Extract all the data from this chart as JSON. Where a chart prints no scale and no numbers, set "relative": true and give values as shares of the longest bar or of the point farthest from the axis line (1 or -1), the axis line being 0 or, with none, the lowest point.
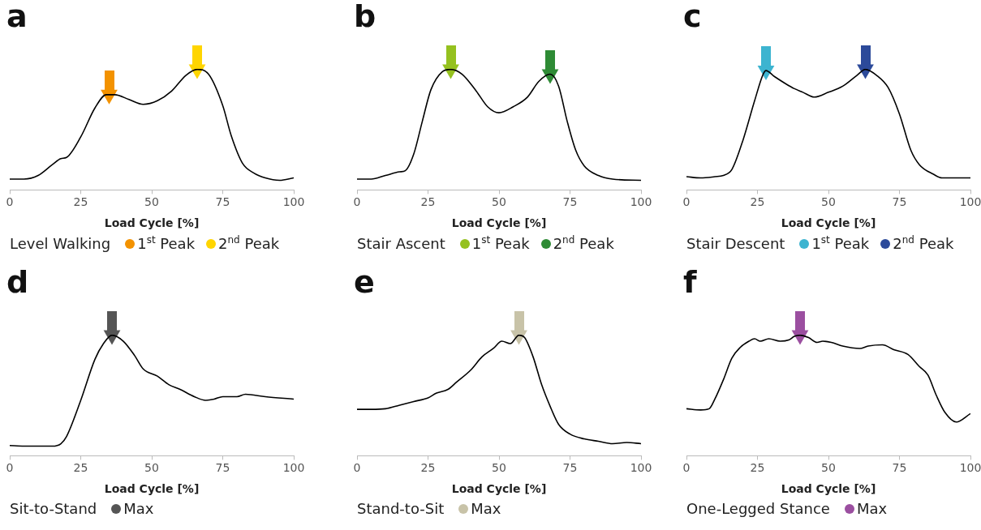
{
  "chart_data": [
    {
      "type": "line",
      "title": "a",
      "subtitle": "Level Walking",
      "xlabel": "Load Cycle [%]",
      "xlim": [
        0,
        100
      ],
      "xticks": [
        0,
        25,
        50,
        75,
        100
      ],
      "relative": true,
      "tick_labels": "x",
      "grid": false,
      "legend": "bottom",
      "series": [
        {
          "color": "#000000",
          "x": [
            0,
            5,
            10,
            15,
            18,
            20,
            25,
            30,
            34,
            37,
            42,
            47,
            52,
            57,
            62,
            66,
            70,
            75,
            78,
            82,
            86,
            90,
            95,
            100
          ],
          "values": [
            0.09,
            0.09,
            0.12,
            0.21,
            0.26,
            0.27,
            0.44,
            0.68,
            0.79,
            0.79,
            0.75,
            0.71,
            0.74,
            0.82,
            0.95,
            1.0,
            0.96,
            0.7,
            0.45,
            0.22,
            0.14,
            0.1,
            0.08,
            0.1
          ]
        },
        {
          "name": "1$^{st}$ Peak",
          "type": "scatter",
          "marker": "triangle",
          "color": "#f39200",
          "x": [
            35
          ],
          "values": [
            0.79
          ]
        },
        {
          "name": "2$^{nd}$ Peak",
          "type": "scatter",
          "marker": "triangle",
          "color": "#ffd500",
          "x": [
            66
          ],
          "values": [
            1.0
          ]
        }
      ]
    },
    {
      "type": "line",
      "title": "b",
      "subtitle": "Stair Ascent",
      "xlabel": "Load Cycle [%]",
      "xlim": [
        0,
        100
      ],
      "xticks": [
        0,
        25,
        50,
        75,
        100
      ],
      "relative": true,
      "tick_labels": "x",
      "grid": false,
      "legend": "bottom",
      "series": [
        {
          "color": "#000000",
          "x": [
            0,
            5,
            10,
            15,
            17,
            20,
            23,
            26,
            30,
            33,
            37,
            42,
            46,
            50,
            55,
            60,
            64,
            68,
            71,
            74,
            77,
            80,
            85,
            90,
            100
          ],
          "values": [
            0.09,
            0.09,
            0.12,
            0.15,
            0.16,
            0.3,
            0.57,
            0.83,
            0.98,
            1.0,
            0.96,
            0.82,
            0.69,
            0.64,
            0.69,
            0.77,
            0.9,
            0.96,
            0.86,
            0.57,
            0.33,
            0.2,
            0.12,
            0.09,
            0.08
          ]
        },
        {
          "name": "1$^{st}$ Peak",
          "type": "scatter",
          "marker": "triangle",
          "color": "#95c11f",
          "x": [
            33
          ],
          "values": [
            1.0
          ]
        },
        {
          "name": "2$^{nd}$ Peak",
          "type": "scatter",
          "marker": "triangle",
          "color": "#2e8b35",
          "x": [
            68
          ],
          "values": [
            0.96
          ]
        }
      ]
    },
    {
      "type": "line",
      "title": "c",
      "subtitle": "Stair Descent",
      "xlabel": "Load Cycle [%]",
      "xlim": [
        0,
        100
      ],
      "xticks": [
        0,
        25,
        50,
        75,
        100
      ],
      "relative": true,
      "tick_labels": "x",
      "grid": false,
      "legend": "bottom",
      "series": [
        {
          "color": "#000000",
          "x": [
            0,
            5,
            10,
            13,
            16,
            20,
            24,
            27,
            28,
            31,
            35,
            38,
            41,
            45,
            50,
            55,
            60,
            63,
            67,
            71,
            75,
            79,
            82,
            87,
            90,
            95,
            100
          ],
          "values": [
            0.11,
            0.1,
            0.11,
            0.12,
            0.17,
            0.42,
            0.74,
            0.96,
            0.99,
            0.94,
            0.88,
            0.84,
            0.81,
            0.77,
            0.81,
            0.86,
            0.95,
            1.0,
            0.95,
            0.85,
            0.63,
            0.33,
            0.21,
            0.13,
            0.1,
            0.1,
            0.1
          ]
        },
        {
          "name": "1$^{st}$ Peak",
          "type": "scatter",
          "marker": "triangle",
          "color": "#3db4d0",
          "x": [
            28
          ],
          "values": [
            0.99
          ]
        },
        {
          "name": "2$^{nd}$ Peak",
          "type": "scatter",
          "marker": "triangle",
          "color": "#2c4a9a",
          "x": [
            63
          ],
          "values": [
            1.0
          ]
        }
      ]
    },
    {
      "type": "line",
      "title": "d",
      "subtitle": "Sit-to-Stand",
      "xlabel": "Load Cycle [%]",
      "xlim": [
        0,
        100
      ],
      "xticks": [
        0,
        25,
        50,
        75,
        100
      ],
      "relative": true,
      "tick_labels": "x",
      "grid": false,
      "legend": "bottom",
      "series": [
        {
          "color": "#000000",
          "x": [
            0,
            5,
            10,
            15,
            18,
            20,
            25,
            30,
            33,
            36,
            40,
            44,
            47,
            52,
            56,
            60,
            65,
            69,
            72,
            75,
            80,
            83,
            90,
            100
          ],
          "values": [
            0.085,
            0.08,
            0.08,
            0.08,
            0.1,
            0.16,
            0.46,
            0.8,
            0.93,
            1.0,
            0.95,
            0.83,
            0.72,
            0.66,
            0.59,
            0.55,
            0.49,
            0.46,
            0.47,
            0.49,
            0.49,
            0.51,
            0.49,
            0.47
          ]
        },
        {
          "name": "Max",
          "type": "scatter",
          "marker": "triangle",
          "color": "#555555",
          "x": [
            36
          ],
          "values": [
            1.0
          ]
        }
      ]
    },
    {
      "type": "line",
      "title": "e",
      "subtitle": "Stand-to-Sit",
      "xlabel": "Load Cycle [%]",
      "xlim": [
        0,
        100
      ],
      "xticks": [
        0,
        25,
        50,
        75,
        100
      ],
      "relative": true,
      "tick_labels": "x",
      "grid": false,
      "legend": "bottom",
      "series": [
        {
          "color": "#000000",
          "x": [
            0,
            5,
            10,
            15,
            20,
            25,
            28,
            32,
            35,
            40,
            44,
            48,
            51,
            54,
            57,
            59,
            62,
            65,
            68,
            71,
            75,
            80,
            85,
            90,
            95,
            100
          ],
          "values": [
            0.385,
            0.385,
            0.39,
            0.42,
            0.45,
            0.48,
            0.52,
            0.55,
            0.61,
            0.71,
            0.82,
            0.89,
            0.95,
            0.93,
            1.0,
            0.98,
            0.82,
            0.59,
            0.41,
            0.26,
            0.18,
            0.14,
            0.12,
            0.1,
            0.11,
            0.1
          ]
        },
        {
          "name": "Max",
          "type": "scatter",
          "marker": "triangle",
          "color": "#c8c3a8",
          "x": [
            57
          ],
          "values": [
            1.0
          ]
        }
      ]
    },
    {
      "type": "line",
      "title": "f",
      "subtitle": "One-Legged Stance",
      "xlabel": "Load Cycle [%]",
      "xlim": [
        0,
        100
      ],
      "xticks": [
        0,
        25,
        50,
        75,
        100
      ],
      "relative": true,
      "tick_labels": "x",
      "grid": false,
      "legend": "bottom",
      "series": [
        {
          "color": "#000000",
          "x": [
            0,
            5,
            8,
            10,
            13,
            16,
            19,
            22,
            24,
            26,
            29,
            33,
            36,
            38,
            40,
            43,
            46,
            48,
            51,
            55,
            61,
            64,
            69,
            73,
            78,
            82,
            85,
            88,
            91,
            95,
            100
          ],
          "values": [
            0.39,
            0.38,
            0.39,
            0.47,
            0.63,
            0.81,
            0.9,
            0.95,
            0.97,
            0.95,
            0.97,
            0.95,
            0.96,
            0.99,
            1.0,
            0.98,
            0.94,
            0.95,
            0.94,
            0.91,
            0.89,
            0.91,
            0.92,
            0.88,
            0.84,
            0.74,
            0.67,
            0.5,
            0.36,
            0.28,
            0.35
          ]
        },
        {
          "name": "Max",
          "type": "scatter",
          "marker": "triangle",
          "color": "#9b4fa0",
          "x": [
            40
          ],
          "values": [
            1.0
          ]
        }
      ]
    }
  ]
}
